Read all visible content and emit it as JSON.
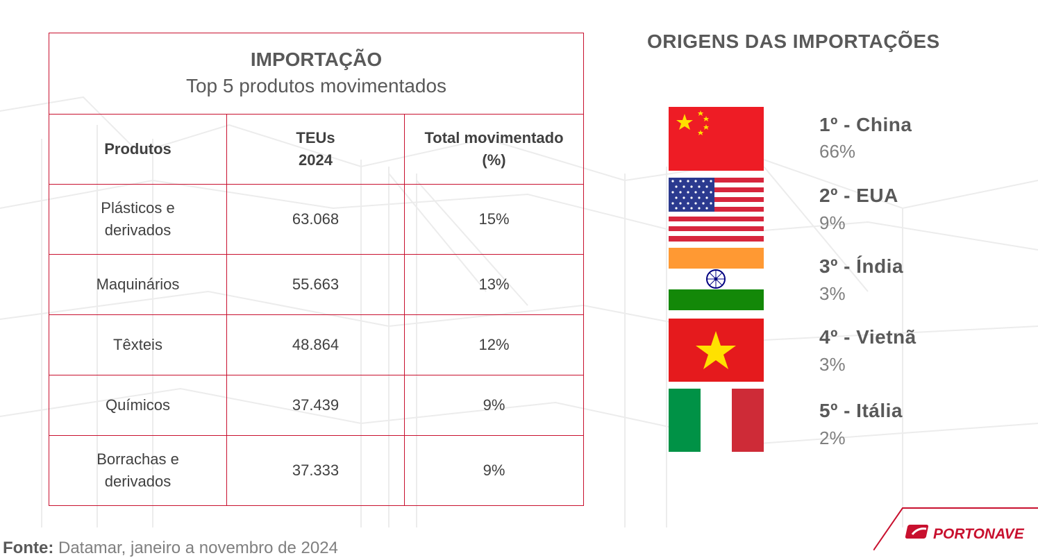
{
  "table": {
    "title": "IMPORTAÇÃO",
    "subtitle": "Top 5 produtos movimentados",
    "headers": {
      "products": "Produtos",
      "teus_line1": "TEUs",
      "teus_line2": "2024",
      "total_line1": "Total movimentado",
      "total_line2": "(%)"
    },
    "rows": [
      {
        "product_line1": "Plásticos e",
        "product_line2": "derivados",
        "teus": "63.068",
        "total": "15%"
      },
      {
        "product": "Maquinários",
        "teus": "55.663",
        "total": "13%"
      },
      {
        "product": "Têxteis",
        "teus": "48.864",
        "total": "12%"
      },
      {
        "product": "Químicos",
        "teus": "37.439",
        "total": "9%"
      },
      {
        "product_line1": "Borrachas e",
        "product_line2": "derivados",
        "teus": "37.333",
        "total": "9%"
      }
    ]
  },
  "origins": {
    "title": "ORIGENS DAS IMPORTAÇÕES",
    "items": [
      {
        "rank": "1º - China",
        "pct": "66%",
        "flag": "china-flag-icon"
      },
      {
        "rank": "2º - EUA",
        "pct": "9%",
        "flag": "usa-flag-icon"
      },
      {
        "rank": "3º - Índia",
        "pct": "3%",
        "flag": "india-flag-icon"
      },
      {
        "rank": "4º - Vietnã",
        "pct": "3%",
        "flag": "vietnam-flag-icon"
      },
      {
        "rank": "5º - Itália",
        "pct": "2%",
        "flag": "italy-flag-icon"
      }
    ]
  },
  "footer": {
    "source_label": "Fonte:",
    "source_text": " Datamar, janeiro a novembro de 2024"
  },
  "logo": {
    "text": "PORTONAVE"
  },
  "colors": {
    "accent": "#c8102e",
    "heading": "#595959",
    "muted": "#7f7f7f"
  }
}
